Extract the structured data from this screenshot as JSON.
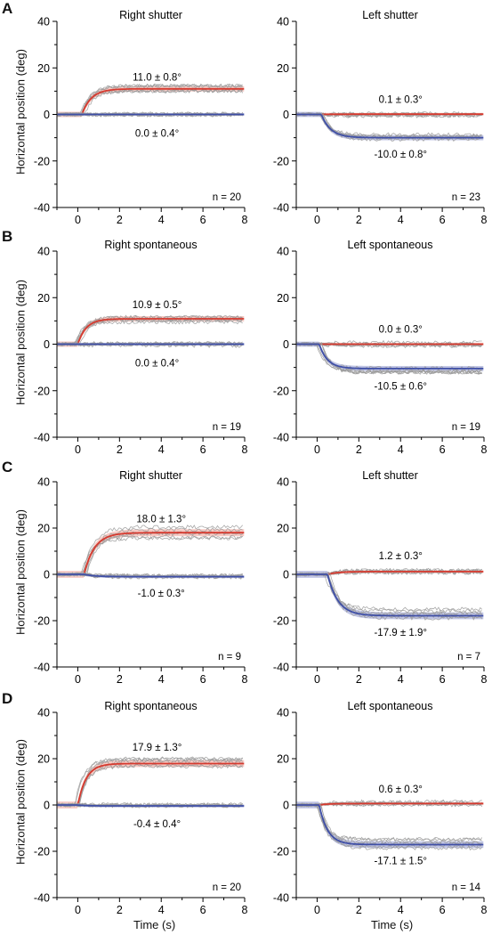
{
  "figure": {
    "rows": [
      {
        "letter": "A",
        "ylabel": "Horizontal position (deg)"
      },
      {
        "letter": "B",
        "ylabel": "Horizontal position (deg)"
      },
      {
        "letter": "C",
        "ylabel": "Horizontal position (deg)"
      },
      {
        "letter": "D",
        "ylabel": "Horizontal position (deg)"
      }
    ],
    "xlabel_left": "Time (s)",
    "xlabel_right": "Time (s)"
  },
  "colors": {
    "red": "#d63a2f",
    "blue": "#3f4fa6",
    "gray": "#9a9a9a",
    "red_band": "#f2b3ab",
    "blue_band": "#a6acd8"
  },
  "chart_data": [
    {
      "type": "line",
      "panel": "A",
      "title": "Right shutter",
      "x_range": [
        -1,
        8
      ],
      "ylim": [
        -40,
        40
      ],
      "xticks": [
        "0",
        "2",
        "4",
        "6",
        "8"
      ],
      "yticks": [
        "40",
        "20",
        "0",
        "-20",
        "-40"
      ],
      "series": [
        {
          "color": "red",
          "value": 11.0,
          "onset": 0.2,
          "tau": 0.45,
          "label": "11.0 ± 0.8°",
          "label_pos": [
            3.8,
            16
          ]
        },
        {
          "color": "blue",
          "value": 0.0,
          "onset": 0.2,
          "tau": 0.45,
          "label": "0.0 ± 0.4°",
          "label_pos": [
            3.8,
            -8
          ]
        }
      ],
      "n_label": "n = 20"
    },
    {
      "type": "line",
      "panel": "A",
      "title": "Left shutter",
      "x_range": [
        -1,
        8
      ],
      "ylim": [
        -40,
        40
      ],
      "xticks": [
        "0",
        "2",
        "4",
        "6",
        "8"
      ],
      "yticks": [
        "40",
        "20",
        "0",
        "-20",
        "-40"
      ],
      "series": [
        {
          "color": "red",
          "value": 0.1,
          "onset": 0.2,
          "tau": 0.45,
          "label": "0.1 ± 0.3°",
          "label_pos": [
            4.0,
            6.5
          ]
        },
        {
          "color": "blue",
          "value": -10.0,
          "onset": 0.2,
          "tau": 0.45,
          "label": "-10.0 ± 0.8°",
          "label_pos": [
            4.0,
            -17
          ]
        }
      ],
      "n_label": "n = 23"
    },
    {
      "type": "line",
      "panel": "B",
      "title": "Right spontaneous",
      "x_range": [
        -1,
        8
      ],
      "ylim": [
        -40,
        40
      ],
      "xticks": [
        "0",
        "2",
        "4",
        "6",
        "8"
      ],
      "yticks": [
        "40",
        "20",
        "0",
        "-20",
        "-40"
      ],
      "series": [
        {
          "color": "red",
          "value": 10.9,
          "onset": 0.0,
          "tau": 0.4,
          "label": "10.9 ± 0.5°",
          "label_pos": [
            3.8,
            17
          ]
        },
        {
          "color": "blue",
          "value": 0.0,
          "onset": 0.0,
          "tau": 0.4,
          "label": "0.0 ± 0.4°",
          "label_pos": [
            3.8,
            -8
          ]
        }
      ],
      "n_label": "n = 19"
    },
    {
      "type": "line",
      "panel": "B",
      "title": "Left spontaneous",
      "x_range": [
        -1,
        8
      ],
      "ylim": [
        -40,
        40
      ],
      "xticks": [
        "0",
        "2",
        "4",
        "6",
        "8"
      ],
      "yticks": [
        "40",
        "20",
        "0",
        "-20",
        "-40"
      ],
      "series": [
        {
          "color": "red",
          "value": 0.0,
          "onset": 0.1,
          "tau": 0.4,
          "label": "0.0 ± 0.3°",
          "label_pos": [
            4.0,
            6.5
          ]
        },
        {
          "color": "blue",
          "value": -10.5,
          "onset": 0.1,
          "tau": 0.4,
          "label": "-10.5 ± 0.6°",
          "label_pos": [
            4.0,
            -18
          ]
        }
      ],
      "n_label": "n = 19"
    },
    {
      "type": "line",
      "panel": "C",
      "title": "Right shutter",
      "x_range": [
        -1,
        8
      ],
      "ylim": [
        -40,
        40
      ],
      "xticks": [
        "0",
        "2",
        "4",
        "6",
        "8"
      ],
      "yticks": [
        "40",
        "20",
        "0",
        "-20",
        "-40"
      ],
      "series": [
        {
          "color": "red",
          "value": 18.0,
          "onset": 0.3,
          "tau": 0.5,
          "label": "18.0 ± 1.3°",
          "label_pos": [
            4.0,
            24
          ]
        },
        {
          "color": "blue",
          "value": -1.0,
          "onset": 0.3,
          "tau": 0.5,
          "label": "-1.0 ± 0.3°",
          "label_pos": [
            4.0,
            -8
          ]
        }
      ],
      "n_label": "n = 9"
    },
    {
      "type": "line",
      "panel": "C",
      "title": "Left shutter",
      "x_range": [
        -1,
        8
      ],
      "ylim": [
        -40,
        40
      ],
      "xticks": [
        "0",
        "2",
        "4",
        "6",
        "8"
      ],
      "yticks": [
        "40",
        "20",
        "0",
        "-20",
        "-40"
      ],
      "series": [
        {
          "color": "red",
          "value": 1.2,
          "onset": 0.5,
          "tau": 0.5,
          "label": "1.2 ± 0.3°",
          "label_pos": [
            4.0,
            8
          ]
        },
        {
          "color": "blue",
          "value": -17.9,
          "onset": 0.5,
          "tau": 0.5,
          "label": "-17.9 ± 1.9°",
          "label_pos": [
            4.0,
            -25
          ]
        }
      ],
      "n_label": "n = 7"
    },
    {
      "type": "line",
      "panel": "D",
      "title": "Right spontaneous",
      "x_range": [
        -1,
        8
      ],
      "ylim": [
        -40,
        40
      ],
      "xticks": [
        "0",
        "2",
        "4",
        "6",
        "8"
      ],
      "yticks": [
        "40",
        "20",
        "0",
        "-20",
        "-40"
      ],
      "series": [
        {
          "color": "red",
          "value": 17.9,
          "onset": 0.0,
          "tau": 0.4,
          "label": "17.9 ± 1.3°",
          "label_pos": [
            3.8,
            25
          ]
        },
        {
          "color": "blue",
          "value": -0.4,
          "onset": 0.0,
          "tau": 0.4,
          "label": "-0.4 ± 0.4°",
          "label_pos": [
            3.8,
            -8
          ]
        }
      ],
      "n_label": "n = 20"
    },
    {
      "type": "line",
      "panel": "D",
      "title": "Left spontaneous",
      "x_range": [
        -1,
        8
      ],
      "ylim": [
        -40,
        40
      ],
      "xticks": [
        "0",
        "2",
        "4",
        "6",
        "8"
      ],
      "yticks": [
        "40",
        "20",
        "0",
        "-20",
        "-40"
      ],
      "series": [
        {
          "color": "red",
          "value": 0.6,
          "onset": 0.1,
          "tau": 0.4,
          "label": "0.6 ± 0.3°",
          "label_pos": [
            4.0,
            7
          ]
        },
        {
          "color": "blue",
          "value": -17.1,
          "onset": 0.1,
          "tau": 0.4,
          "label": "-17.1 ± 1.5°",
          "label_pos": [
            4.0,
            -24
          ]
        }
      ],
      "n_label": "n = 14"
    }
  ]
}
